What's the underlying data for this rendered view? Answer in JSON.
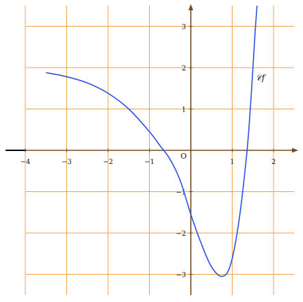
{
  "chart_data": {
    "type": "line",
    "title": "",
    "xlabel": "",
    "ylabel": "",
    "xlim": [
      -4.5,
      2.5
    ],
    "ylim": [
      -3.5,
      3.5
    ],
    "grid": true,
    "legend": "none",
    "origin_label": "O",
    "x_ticks": [
      {
        "value": -4,
        "label": "−4"
      },
      {
        "value": -3,
        "label": "−3"
      },
      {
        "value": -2,
        "label": "−2"
      },
      {
        "value": -1,
        "label": "−1"
      },
      {
        "value": 1,
        "label": "1"
      },
      {
        "value": 2,
        "label": "2"
      }
    ],
    "y_ticks": [
      {
        "value": 3,
        "label": "3"
      },
      {
        "value": 2,
        "label": "2"
      },
      {
        "value": 1,
        "label": "1"
      },
      {
        "value": -1,
        "label": "−1"
      },
      {
        "value": -2,
        "label": "−2"
      },
      {
        "value": -3,
        "label": "−3"
      }
    ],
    "series": [
      {
        "name": "𝒞f",
        "color": "#2b4fe0",
        "x": [
          -3.5,
          -3.0,
          -2.5,
          -2.0,
          -1.5,
          -1.0,
          -0.75,
          -0.5,
          -0.25,
          0.0,
          0.25,
          0.5,
          0.75,
          0.95,
          1.15,
          1.35,
          1.45,
          1.55,
          1.6
        ],
        "y": [
          1.88,
          1.78,
          1.63,
          1.38,
          1.0,
          0.45,
          0.12,
          -0.22,
          -0.75,
          -1.55,
          -2.25,
          -2.82,
          -3.05,
          -2.8,
          -1.8,
          -0.1,
          1.2,
          2.8,
          3.5
        ]
      }
    ],
    "colors": {
      "grid": "#f0a040",
      "axis": "#7a4a1a",
      "negative_x_axis": "#000000",
      "curve": "#2b4fe0"
    }
  }
}
